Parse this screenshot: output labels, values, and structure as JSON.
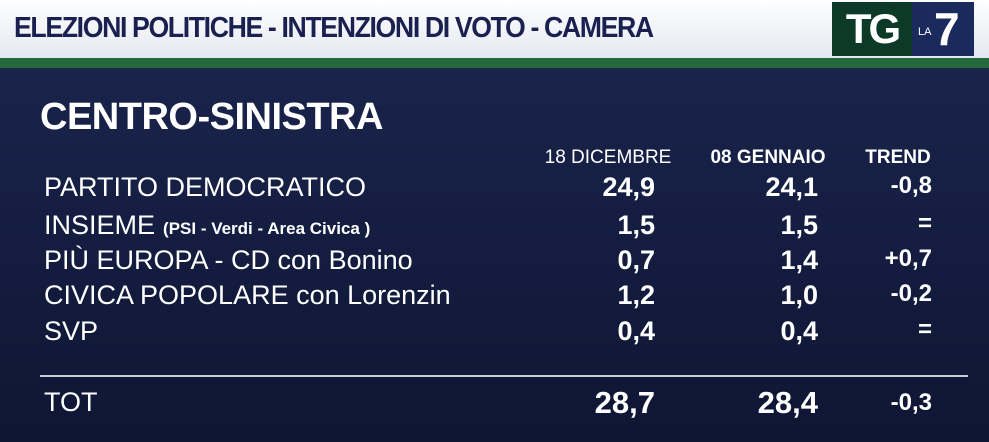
{
  "header": {
    "title": "ELEZIONI POLITICHE - INTENZIONI DI VOTO - CAMERA",
    "logo": {
      "tg": "TG",
      "la": "LA",
      "seven": "7"
    }
  },
  "section": "CENTRO-SINISTRA",
  "table": {
    "columns": [
      "18 DICEMBRE",
      "08 GENNAIO",
      "TREND"
    ],
    "rows": [
      {
        "name": "PARTITO DEMOCRATICO",
        "values": [
          "24,9",
          "24,1",
          "-0,8"
        ]
      },
      {
        "name": "INSIEME",
        "note": "(PSI - Verdi - Area Civica )",
        "values": [
          "1,5",
          "1,5",
          "="
        ]
      },
      {
        "name": "PIÙ EUROPA - CD con Bonino",
        "values": [
          "0,7",
          "1,4",
          "+0,7"
        ]
      },
      {
        "name": "CIVICA POPOLARE con Lorenzin",
        "values": [
          "1,2",
          "1,0",
          "-0,2"
        ]
      },
      {
        "name": "SVP",
        "values": [
          "0,4",
          "0,4",
          "="
        ]
      }
    ],
    "total": {
      "label": "TOT",
      "values": [
        "28,7",
        "28,4",
        "-0,3"
      ]
    }
  }
}
